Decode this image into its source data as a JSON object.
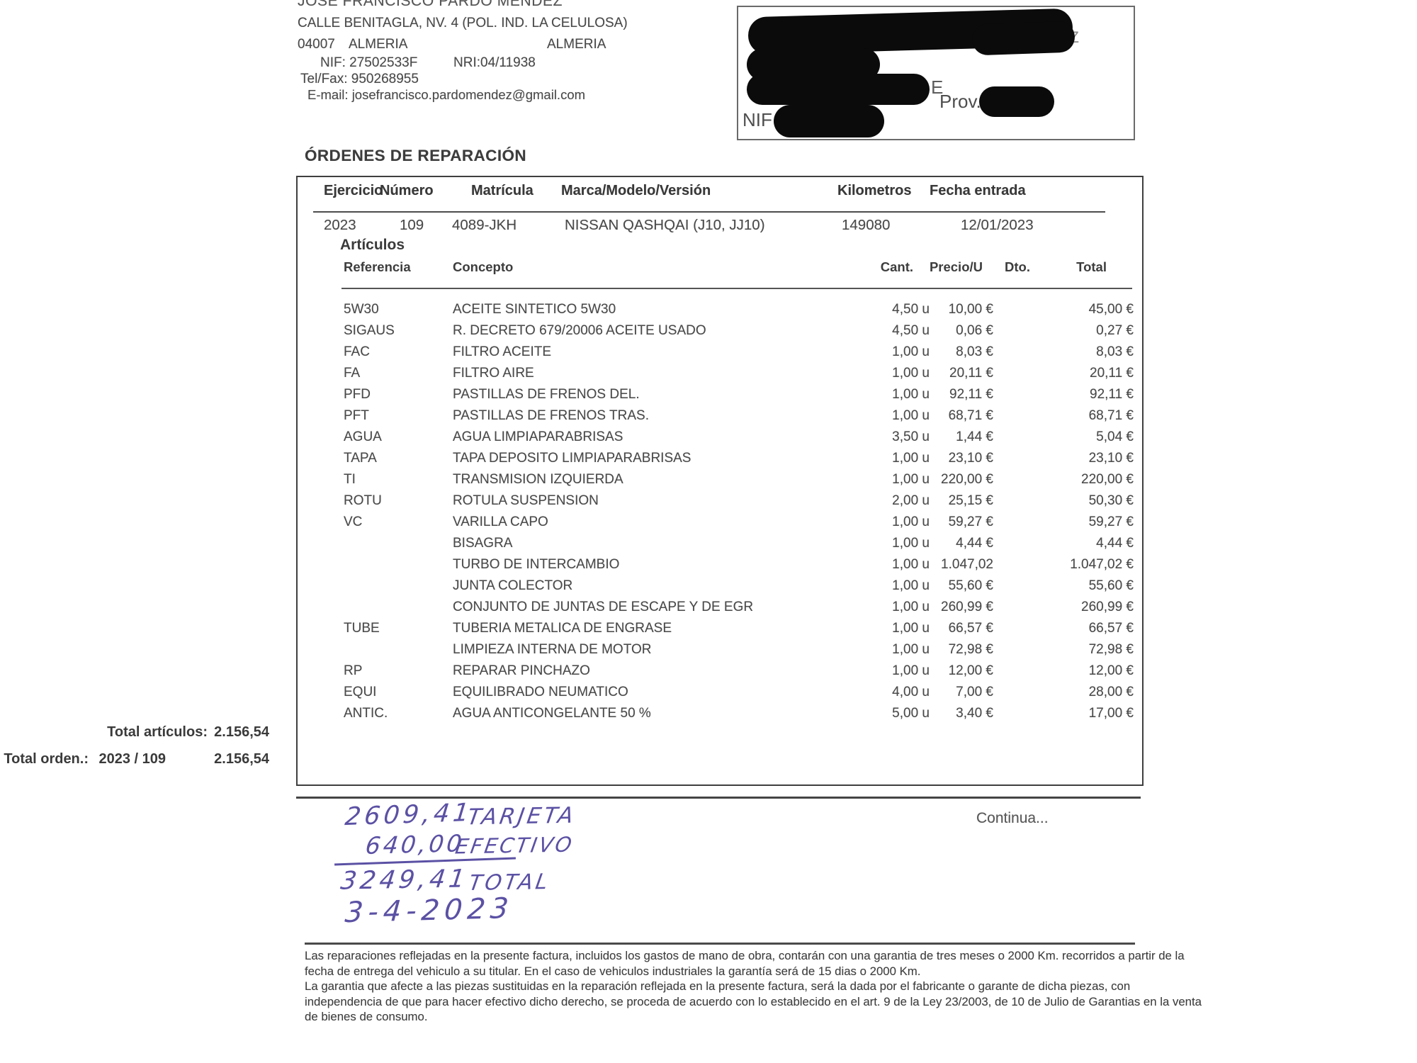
{
  "business": {
    "name": "JOSE FRANCISCO PARDO MENDEZ",
    "address": "CALLE BENITAGLA, NV. 4 (POL. IND. LA CELULOSA)",
    "postal_code": "04007",
    "city": "ALMERIA",
    "province": "ALMERIA",
    "nif_line": "NIF: 27502533F",
    "nri_line": "NRI:04/11938",
    "telfax_line": "Tel/Fax: 950268955",
    "email_line": "E-mail: josefrancisco.pardomendez@gmail.com"
  },
  "customer_box": {
    "partial_text": "MENDEZ",
    "partial_letter": "E",
    "prov_label": "Prov.",
    "nif_label": "NIF"
  },
  "section_title": "ÓRDENES DE REPARACIÓN",
  "order": {
    "headers": {
      "ejercicio": "Ejercicio",
      "numero": "Número",
      "matricula": "Matrícula",
      "marca": "Marca/Modelo/Versión",
      "kilometros": "Kilometros",
      "fecha": "Fecha entrada"
    },
    "ejercicio": "2023",
    "numero": "109",
    "matricula": "4089-JKH",
    "marca": "NISSAN QASHQAI (J10, JJ10)",
    "kilometros": "149080",
    "fecha": "12/01/2023"
  },
  "articles": {
    "title": "Artículos",
    "headers": {
      "referencia": "Referencia",
      "concepto": "Concepto",
      "cant": "Cant.",
      "precio": "Precio/U",
      "dto": "Dto.",
      "total": "Total"
    },
    "rows": [
      {
        "ref": "5W30",
        "concepto": "ACEITE SINTETICO 5W30",
        "cant": "4,50 u",
        "precio": "10,00 €",
        "total": "45,00 €"
      },
      {
        "ref": "SIGAUS",
        "concepto": "R. DECRETO 679/20006 ACEITE USADO",
        "cant": "4,50 u",
        "precio": "0,06 €",
        "total": "0,27 €"
      },
      {
        "ref": "FAC",
        "concepto": "FILTRO ACEITE",
        "cant": "1,00 u",
        "precio": "8,03 €",
        "total": "8,03 €"
      },
      {
        "ref": "FA",
        "concepto": "FILTRO AIRE",
        "cant": "1,00 u",
        "precio": "20,11 €",
        "total": "20,11 €"
      },
      {
        "ref": "PFD",
        "concepto": "PASTILLAS DE FRENOS DEL.",
        "cant": "1,00 u",
        "precio": "92,11 €",
        "total": "92,11 €"
      },
      {
        "ref": "PFT",
        "concepto": "PASTILLAS DE FRENOS TRAS.",
        "cant": "1,00 u",
        "precio": "68,71 €",
        "total": "68,71 €"
      },
      {
        "ref": "AGUA",
        "concepto": "AGUA LIMPIAPARABRISAS",
        "cant": "3,50 u",
        "precio": "1,44 €",
        "total": "5,04 €"
      },
      {
        "ref": "TAPA",
        "concepto": "TAPA DEPOSITO LIMPIAPARABRISAS",
        "cant": "1,00 u",
        "precio": "23,10 €",
        "total": "23,10 €"
      },
      {
        "ref": "TI",
        "concepto": "TRANSMISION IZQUIERDA",
        "cant": "1,00 u",
        "precio": "220,00 €",
        "total": "220,00 €"
      },
      {
        "ref": "ROTU",
        "concepto": "ROTULA SUSPENSION",
        "cant": "2,00 u",
        "precio": "25,15 €",
        "total": "50,30 €"
      },
      {
        "ref": "VC",
        "concepto": "VARILLA CAPO",
        "cant": "1,00 u",
        "precio": "59,27 €",
        "total": "59,27 €"
      },
      {
        "ref": "",
        "concepto": "BISAGRA",
        "cant": "1,00 u",
        "precio": "4,44 €",
        "total": "4,44 €"
      },
      {
        "ref": "",
        "concepto": "TURBO DE INTERCAMBIO",
        "cant": "1,00 u",
        "precio": "1.047,02",
        "total": "1.047,02 €"
      },
      {
        "ref": "",
        "concepto": "JUNTA COLECTOR",
        "cant": "1,00 u",
        "precio": "55,60 €",
        "total": "55,60 €"
      },
      {
        "ref": "",
        "concepto": "CONJUNTO DE JUNTAS DE ESCAPE Y DE EGR",
        "cant": "1,00 u",
        "precio": "260,99 €",
        "total": "260,99 €"
      },
      {
        "ref": "TUBE",
        "concepto": "TUBERIA METALICA DE ENGRASE",
        "cant": "1,00 u",
        "precio": "66,57 €",
        "total": "66,57 €"
      },
      {
        "ref": "",
        "concepto": "LIMPIEZA INTERNA DE MOTOR",
        "cant": "1,00 u",
        "precio": "72,98 €",
        "total": "72,98 €"
      },
      {
        "ref": "RP",
        "concepto": "REPARAR PINCHAZO",
        "cant": "1,00 u",
        "precio": "12,00 €",
        "total": "12,00 €"
      },
      {
        "ref": "EQUI",
        "concepto": "EQUILIBRADO NEUMATICO",
        "cant": "4,00 u",
        "precio": "7,00 €",
        "total": "28,00 €"
      },
      {
        "ref": "ANTIC.",
        "concepto": "AGUA ANTICONGELANTE 50 %",
        "cant": "5,00 u",
        "precio": "3,40 €",
        "total": "17,00 €"
      }
    ],
    "total_articulos_label": "Total artículos:",
    "total_articulos": "2.156,54",
    "total_orden_label": "Total orden.:",
    "total_orden_ref": "2023 / 109",
    "total_orden": "2.156,54"
  },
  "handwriting": {
    "amount_card": "2609,41",
    "label_card": "TARJETA",
    "amount_cash": "640,00",
    "label_cash": "EFECTIVO",
    "amount_total": "3249,41",
    "label_total": "TOTAL",
    "date": "3-4-2023"
  },
  "continua": "Continua...",
  "footer": {
    "lines": [
      "Las reparaciones reflejadas en la presente factura, incluidos los gastos de mano de obra, contarán con una garantia de tres meses o 2000 Km. recorridos a partir de la",
      "fecha de entrega del vehiculo a su titular. En el caso de vehiculos industriales la garantía será de 15 dias o 2000 Km.",
      "La garantia que afecte a las piezas sustituidas en la reparación reflejada en la presente factura, será la dada por el fabricante o garante de dicha piezas, con",
      "independencia de que para hacer efectivo dicho derecho, se proceda de acuerdo con lo establecido en el art. 9 de la Ley 23/2003, de 10 de Julio de Garantias en la venta",
      "de bienes de consumo."
    ]
  }
}
